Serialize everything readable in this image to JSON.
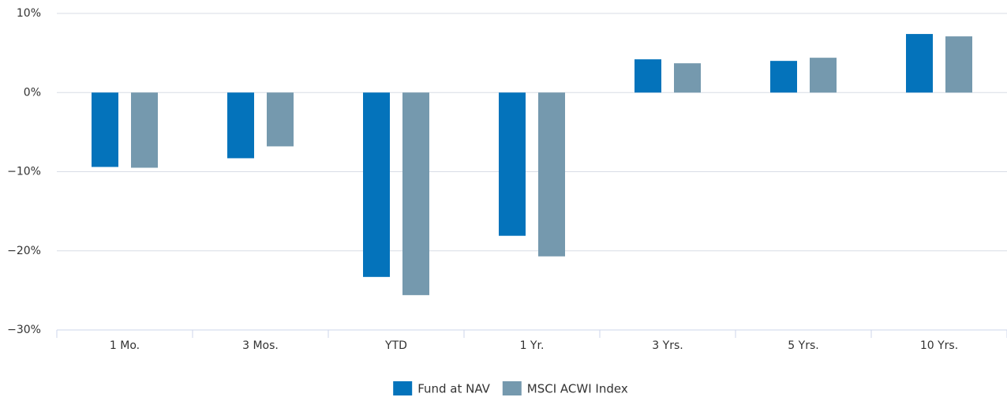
{
  "chart_data": {
    "type": "bar",
    "categories": [
      "1 Mo.",
      "3 Mos.",
      "YTD",
      "1 Yr.",
      "3 Yrs.",
      "5 Yrs.",
      "10 Yrs."
    ],
    "series": [
      {
        "name": "Fund at NAV",
        "color": "#0473bb",
        "values": [
          -9.4,
          -8.3,
          -23.3,
          -18.1,
          4.2,
          4.0,
          7.4
        ]
      },
      {
        "name": "MSCI ACWI Index",
        "color": "#7599ae",
        "values": [
          -9.5,
          -6.8,
          -25.6,
          -20.7,
          3.7,
          4.4,
          7.1
        ]
      }
    ],
    "ylim": [
      -30,
      10
    ],
    "yticks": [
      {
        "value": -30,
        "label": "−30%"
      },
      {
        "value": -20,
        "label": "−20%"
      },
      {
        "value": -10,
        "label": "−10%"
      },
      {
        "value": 0,
        "label": "0%"
      },
      {
        "value": 10,
        "label": "10%"
      }
    ],
    "grid": true,
    "legend": "bottom"
  }
}
